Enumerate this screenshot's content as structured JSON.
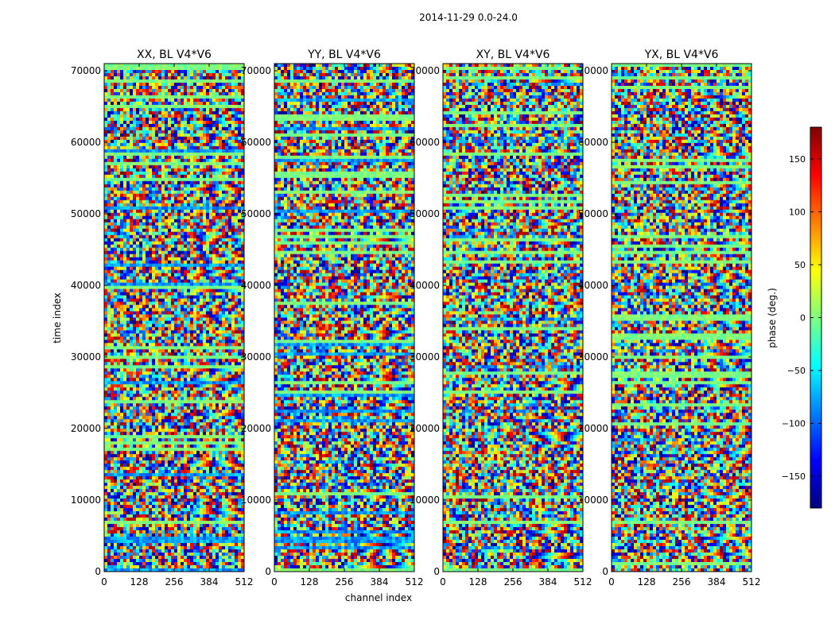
{
  "chart_data": {
    "type": "heatmap",
    "suptitle": "2014-11-29 0.0-24.0",
    "xlabel": "channel index",
    "ylabel": "time index",
    "xlim": [
      0,
      512
    ],
    "ylim": [
      0,
      71000
    ],
    "x_ticks": [
      0,
      128,
      256,
      384,
      512
    ],
    "y_ticks": [
      0,
      10000,
      20000,
      30000,
      40000,
      50000,
      60000,
      70000
    ],
    "colorbar": {
      "label": "phase (deg.)",
      "range": [
        -180,
        180
      ],
      "ticks": [
        150,
        100,
        50,
        0,
        -50,
        -100,
        -150
      ],
      "tick_labels": [
        "150",
        "100",
        "50",
        "0",
        "−50",
        "−100",
        "−150"
      ],
      "colormap": [
        "#00007f",
        "#0000ff",
        "#007fff",
        "#00ffff",
        "#7fff7f",
        "#ffff00",
        "#ff7f00",
        "#ff0000",
        "#7f0000"
      ]
    },
    "panels": [
      {
        "title": "XX, BL V4*V6",
        "polarization": "XX",
        "baseline": "V4*V6"
      },
      {
        "title": "YY, BL V4*V6",
        "polarization": "YY",
        "baseline": "V4*V6"
      },
      {
        "title": "XY, BL V4*V6",
        "polarization": "XY",
        "baseline": "V4*V6"
      },
      {
        "title": "YX, BL V4*V6",
        "polarization": "YX",
        "baseline": "V4*V6"
      }
    ]
  }
}
